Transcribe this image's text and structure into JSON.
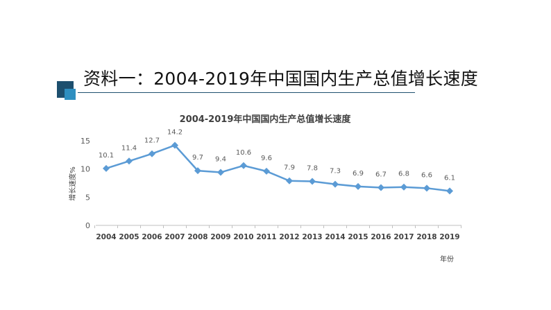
{
  "slide": {
    "title": "资料一：2004-2019年中国国内生产总值增长速度"
  },
  "chart_data": {
    "type": "line",
    "title": "2004-2019年中国国内生产总值增长速度",
    "xlabel": "年份",
    "ylabel": "增长速度%",
    "categories": [
      "2004",
      "2005",
      "2006",
      "2007",
      "2008",
      "2009",
      "2010",
      "2011",
      "2012",
      "2013",
      "2014",
      "2015",
      "2016",
      "2017",
      "2018",
      "2019"
    ],
    "series": [
      {
        "values": [
          10.1,
          11.4,
          12.7,
          14.2,
          9.7,
          9.4,
          10.6,
          9.6,
          7.9,
          7.8,
          7.3,
          6.9,
          6.7,
          6.8,
          6.6,
          6.1
        ]
      }
    ],
    "data_labels": [
      "10.1",
      "11.4",
      "12.7",
      "14.2",
      "9.7",
      "9.4",
      "10.6",
      "9.6",
      "7.9",
      "7.8",
      "7.3",
      "6.9",
      "6.7",
      "6.8",
      "6.6",
      "6.1"
    ],
    "yticks": [
      "0",
      "5",
      "10",
      "15"
    ],
    "ylim": [
      0,
      15
    ],
    "grid": false,
    "legend": "none",
    "colors": {
      "line": "#5b9bd5",
      "marker": "#5b9bd5",
      "axis": "#bfbfbf",
      "text": "#595959"
    }
  }
}
